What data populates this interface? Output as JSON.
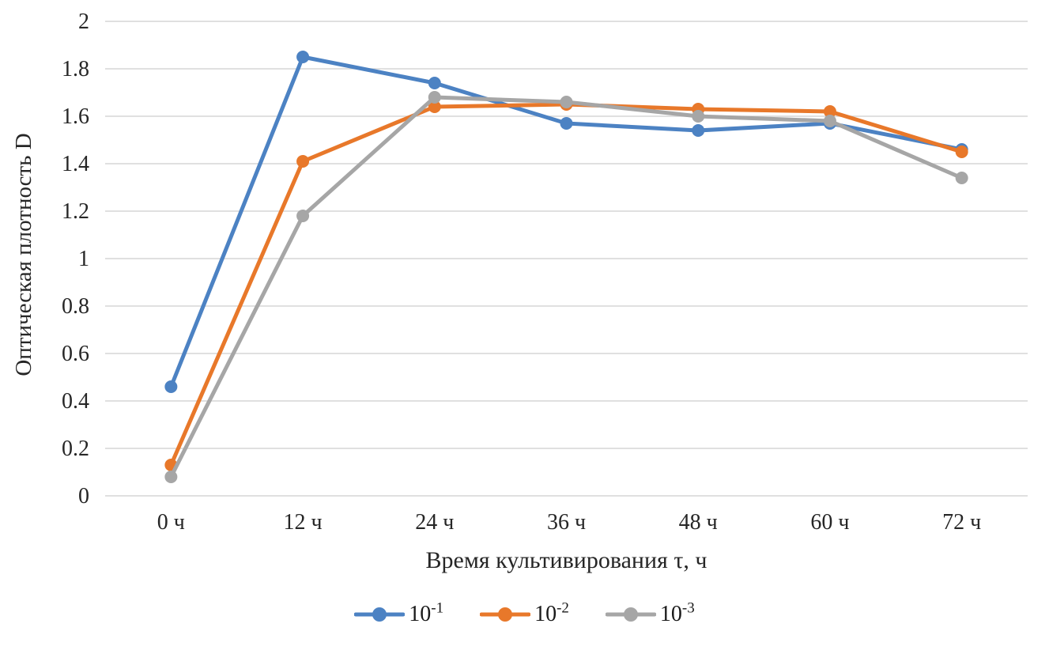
{
  "chart_data": {
    "type": "line",
    "title": "",
    "xlabel": "Время культивирования τ, ч",
    "ylabel": "Оптическая плотность D",
    "categories": [
      "0 ч",
      "12 ч",
      "24 ч",
      "36 ч",
      "48 ч",
      "60 ч",
      "72 ч"
    ],
    "series": [
      {
        "name": "10^-1",
        "label_base": "10",
        "label_exp": "-1",
        "color": "#4C82C3",
        "values": [
          0.46,
          1.85,
          1.74,
          1.57,
          1.54,
          1.57,
          1.46
        ]
      },
      {
        "name": "10^-2",
        "label_base": "10",
        "label_exp": "-2",
        "color": "#E8782A",
        "values": [
          0.13,
          1.41,
          1.64,
          1.65,
          1.63,
          1.62,
          1.45
        ]
      },
      {
        "name": "10^-3",
        "label_base": "10",
        "label_exp": "-3",
        "color": "#A6A6A6",
        "values": [
          0.08,
          1.18,
          1.68,
          1.66,
          1.6,
          1.58,
          1.34
        ]
      }
    ],
    "ylim": [
      0,
      2
    ],
    "ytick_labels": [
      "0",
      "0.2",
      "0.4",
      "0.6",
      "0.8",
      "1",
      "1.2",
      "1.4",
      "1.6",
      "1.8",
      "2"
    ],
    "grid": true,
    "gridline_color": "#D6D6D6",
    "legend_position": "bottom"
  }
}
